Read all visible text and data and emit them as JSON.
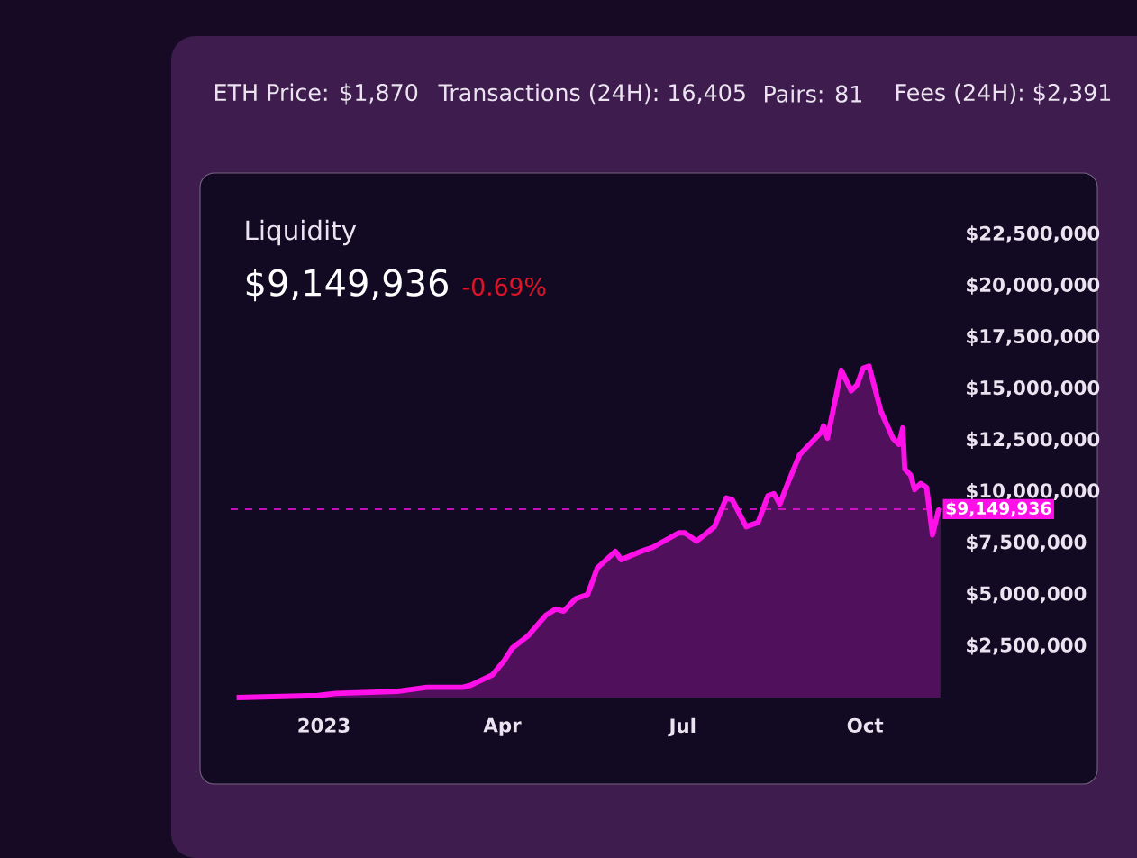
{
  "chart_data": {
    "type": "area",
    "title": "Liquidity",
    "subtitle": "$9,149,936",
    "annotations": [
      "ETH Price: $1,870",
      "Transactions (24H): 16,405",
      "Pairs: 81",
      "Fees (24H): $2,391",
      "-0.69%"
    ],
    "color": "#ff10e8",
    "x": [
      "2022-11-18",
      "2022-12-29",
      "2023-01-07",
      "2023-02-07",
      "2023-02-22",
      "2023-03-12",
      "2023-03-16",
      "2023-03-27",
      "2023-04-02",
      "2023-04-06",
      "2023-04-14",
      "2023-04-23",
      "2023-04-28",
      "2023-05-02",
      "2023-05-08",
      "2023-05-14",
      "2023-05-19",
      "2023-05-28",
      "2023-05-31",
      "2023-06-10",
      "2023-06-16",
      "2023-06-29",
      "2023-07-02",
      "2023-07-08",
      "2023-07-12",
      "2023-07-17",
      "2023-07-23",
      "2023-07-26",
      "2023-08-02",
      "2023-08-08",
      "2023-08-13",
      "2023-08-16",
      "2023-08-19",
      "2023-08-23",
      "2023-08-29",
      "2023-09-03",
      "2023-09-09",
      "2023-09-10",
      "2023-09-12",
      "2023-09-19",
      "2023-09-24",
      "2023-09-27",
      "2023-09-30",
      "2023-10-03",
      "2023-10-09",
      "2023-10-15",
      "2023-10-18",
      "2023-10-20",
      "2023-10-21",
      "2023-10-24",
      "2023-10-26",
      "2023-10-29",
      "2023-11-01",
      "2023-11-04",
      "2023-11-07",
      "2023-11-08"
    ],
    "values": [
      0,
      100000,
      200000,
      300000,
      500000,
      500000,
      600000,
      1100000,
      1800000,
      2400000,
      3000000,
      4000000,
      4300000,
      4200000,
      4800000,
      5000000,
      6300000,
      7100000,
      6700000,
      7100000,
      7300000,
      8000000,
      8000000,
      7600000,
      7900000,
      8300000,
      9700000,
      9600000,
      8300000,
      8500000,
      9800000,
      9900000,
      9400000,
      10400000,
      11800000,
      12300000,
      12900000,
      13200000,
      12600000,
      15900000,
      14900000,
      15200000,
      16000000,
      16100000,
      13900000,
      12600000,
      12300000,
      13100000,
      11100000,
      10800000,
      10100000,
      10400000,
      10200000,
      7900000,
      9100000,
      9149936
    ],
    "xlim": [
      "2022-11-15",
      "2023-11-09"
    ],
    "xticks": [
      {
        "value": "2023-01-01",
        "label": "2023"
      },
      {
        "value": "2023-04-01",
        "label": "Apr"
      },
      {
        "value": "2023-07-01",
        "label": "Jul"
      },
      {
        "value": "2023-10-01",
        "label": "Oct"
      }
    ],
    "ylim": [
      0,
      22500000
    ],
    "yticks": [
      {
        "value": 2500000,
        "label": "$2,500,000"
      },
      {
        "value": 5000000,
        "label": "$5,000,000"
      },
      {
        "value": 7500000,
        "label": "$7,500,000"
      },
      {
        "value": 10000000,
        "label": "$10,000,000"
      },
      {
        "value": 12500000,
        "label": "$12,500,000"
      },
      {
        "value": 15000000,
        "label": "$15,000,000"
      },
      {
        "value": 17500000,
        "label": "$17,500,000"
      },
      {
        "value": 20000000,
        "label": "$20,000,000"
      },
      {
        "value": 22500000,
        "label": "$22,500,000"
      }
    ],
    "ref_lines": [
      {
        "axis": "y",
        "value": 9149936,
        "label": "$9,149,936",
        "color": "#ff10e8",
        "line_style": "dashed"
      }
    ]
  }
}
